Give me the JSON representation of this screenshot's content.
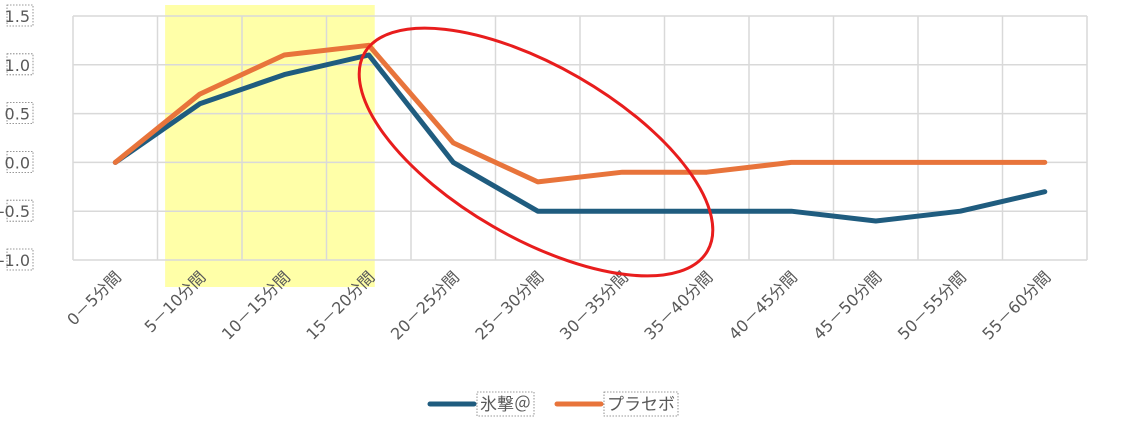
{
  "chart_data": {
    "type": "line",
    "categories": [
      "0－5分間",
      "5－10分間",
      "10－15分間",
      "15－20分間",
      "20－25分間",
      "25－30分間",
      "30－35分間",
      "35－40分間",
      "40－45分間",
      "45－50分間",
      "50－55分間",
      "55－60分間"
    ],
    "series": [
      {
        "name": "氷撃＠",
        "color": "#1f5c7f",
        "values": [
          0.0,
          0.6,
          0.9,
          1.1,
          0.0,
          -0.5,
          -0.5,
          -0.5,
          -0.5,
          -0.6,
          -0.5,
          -0.3
        ]
      },
      {
        "name": "プラセボ",
        "color": "#e8743b",
        "values": [
          0.0,
          0.7,
          1.1,
          1.2,
          0.2,
          -0.2,
          -0.1,
          -0.1,
          0.0,
          0.0,
          0.0,
          0.0
        ]
      }
    ],
    "yticks": [
      "1.5",
      "1.0",
      "0.5",
      "0.0",
      "-0.5",
      "-1.0"
    ],
    "ylim": [
      -1.0,
      1.5
    ],
    "grid": true,
    "legend_position": "bottom",
    "highlight": {
      "from_category": "5－10分間",
      "to_category": "15－20分間",
      "color": "#ffff99"
    },
    "annotation_ellipse_color": "#e81d1d"
  }
}
